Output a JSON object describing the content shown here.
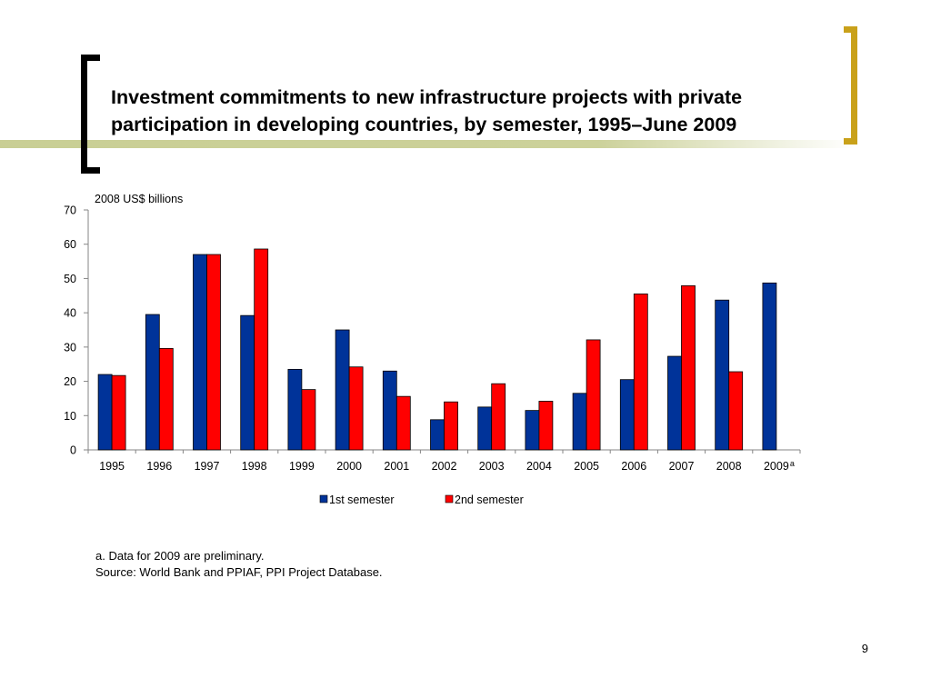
{
  "slide": {
    "title_line1": "Investment commitments to new infrastructure projects with private",
    "title_line2": "participation in developing countries, by semester, 1995–June 2009",
    "footnote": "a. Data for 2009 are preliminary.",
    "source": "Source: World Bank and PPIAF, PPI Project Database.",
    "page_number": "9",
    "colors": {
      "accent_line": "#c6cc8f",
      "bracket_left": "#000000",
      "bracket_right": "#c9a11a"
    }
  },
  "chart_data": {
    "type": "bar",
    "title": "",
    "ylabel": "2008 US$ billions",
    "xlabel": "",
    "ylim": [
      0,
      70
    ],
    "yticks": [
      0,
      10,
      20,
      30,
      40,
      50,
      60,
      70
    ],
    "grid": false,
    "legend_position": "bottom",
    "categories": [
      "1995",
      "1996",
      "1997",
      "1998",
      "1999",
      "2000",
      "2001",
      "2002",
      "2003",
      "2004",
      "2005",
      "2006",
      "2007",
      "2008",
      "2009"
    ],
    "category_superscripts": {
      "2009": "a"
    },
    "series": [
      {
        "name": "1st semester",
        "color": "#003399",
        "values": [
          22,
          39.5,
          57,
          39.2,
          23.5,
          35,
          23,
          8.8,
          12.5,
          11.5,
          16.5,
          20.5,
          27.3,
          43.7,
          48.7
        ]
      },
      {
        "name": "2nd semester",
        "color": "#ff0000",
        "values": [
          21.7,
          29.6,
          57,
          58.6,
          17.6,
          24.2,
          15.6,
          14,
          19.3,
          14.2,
          32.1,
          45.5,
          47.9,
          22.8,
          null
        ]
      }
    ]
  }
}
